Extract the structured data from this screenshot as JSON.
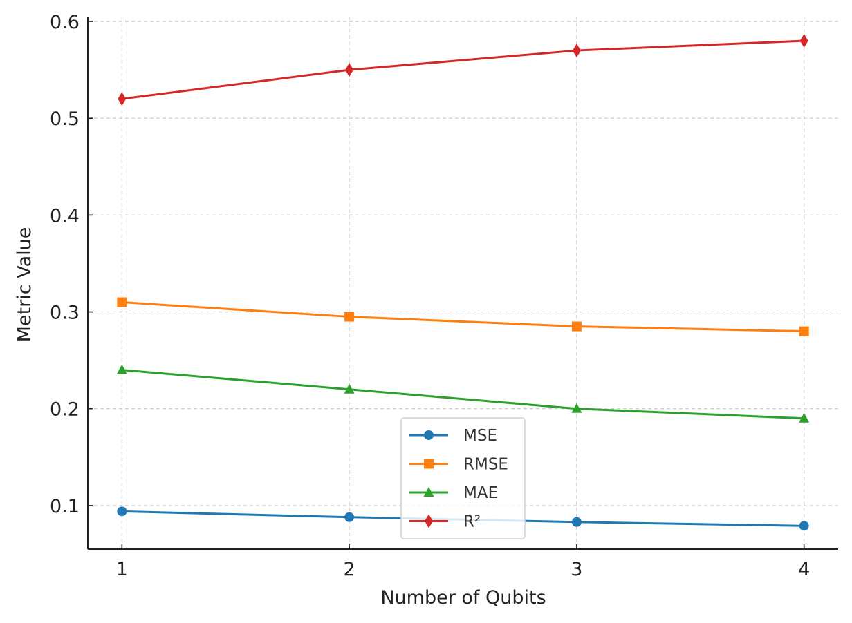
{
  "chart_data": {
    "type": "line",
    "title": "",
    "xlabel": "Number of Qubits",
    "ylabel": "Metric Value",
    "x": [
      1,
      2,
      3,
      4
    ],
    "x_tick_labels": [
      "1",
      "2",
      "3",
      "4"
    ],
    "y_ticks": [
      0.1,
      0.2,
      0.3,
      0.4,
      0.5,
      0.6
    ],
    "y_tick_labels": [
      "0.1",
      "0.2",
      "0.3",
      "0.4",
      "0.5",
      "0.6"
    ],
    "xlim": [
      0.85,
      4.15
    ],
    "ylim": [
      0.055,
      0.605
    ],
    "grid": true,
    "legend_position": "lower-center",
    "series": [
      {
        "name": "MSE",
        "values": [
          0.094,
          0.088,
          0.083,
          0.079
        ],
        "color": "#1f77b4",
        "marker": "circle"
      },
      {
        "name": "RMSE",
        "values": [
          0.31,
          0.295,
          0.285,
          0.28
        ],
        "color": "#ff7f0e",
        "marker": "square"
      },
      {
        "name": "MAE",
        "values": [
          0.24,
          0.22,
          0.2,
          0.19
        ],
        "color": "#2ca02c",
        "marker": "triangle"
      },
      {
        "name": "R²",
        "values": [
          0.52,
          0.55,
          0.57,
          0.58
        ],
        "color": "#d62728",
        "marker": "diamond"
      }
    ]
  }
}
